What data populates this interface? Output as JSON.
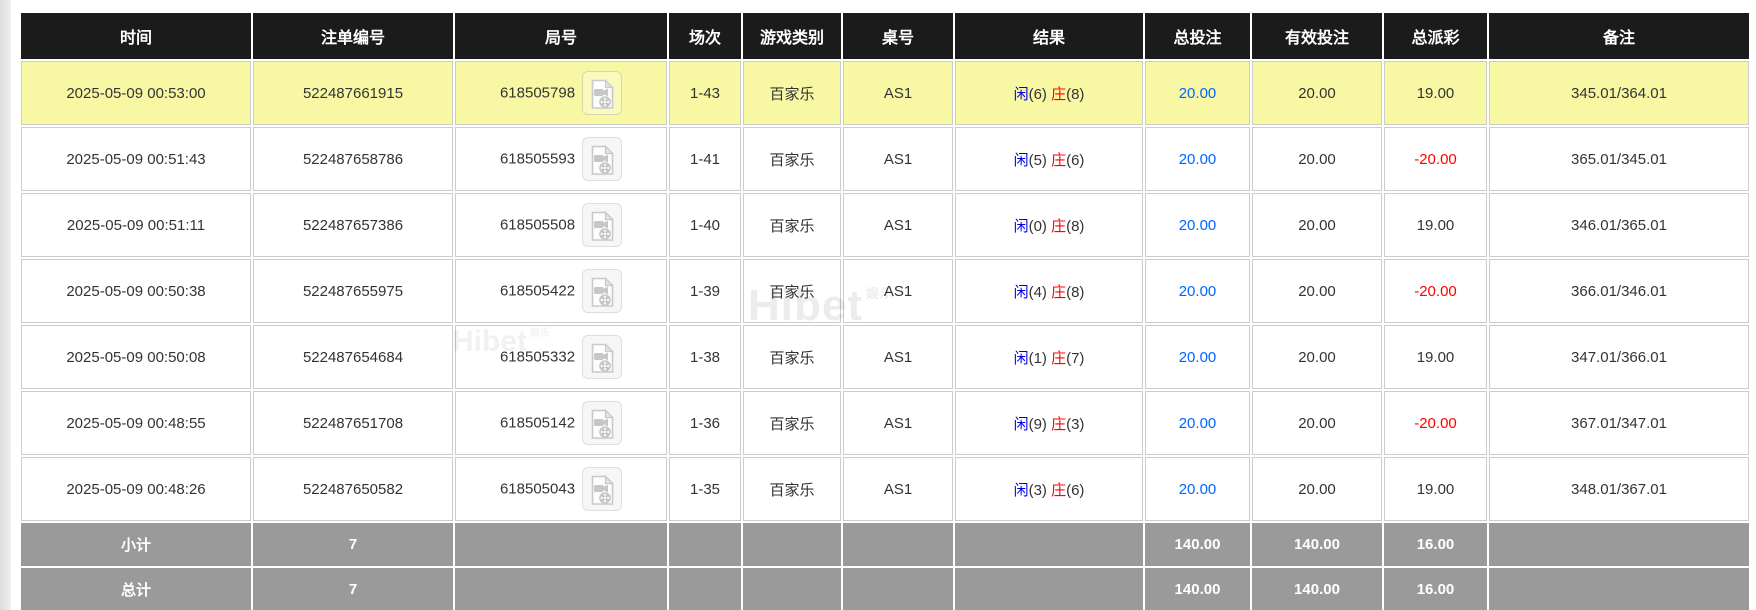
{
  "colors": {
    "header_bg": "#1b1b1b",
    "highlight_row": "#f8f8a4",
    "footer_bg": "#9a9a9a",
    "bet_amount_blue": "#0066ff",
    "player_blue": "#0000ee",
    "banker_red": "#ff0000",
    "negative_red": "#ff0000"
  },
  "watermark": {
    "text": "Hibet",
    "suffix": "娱乐"
  },
  "icons": {
    "replay": "video-file-icon"
  },
  "table": {
    "columns": [
      {
        "key": "time",
        "label": "时间"
      },
      {
        "key": "bet_id",
        "label": "注单编号"
      },
      {
        "key": "round",
        "label": "局号"
      },
      {
        "key": "session",
        "label": "场次"
      },
      {
        "key": "game",
        "label": "游戏类别"
      },
      {
        "key": "table_no",
        "label": "桌号"
      },
      {
        "key": "result",
        "label": "结果"
      },
      {
        "key": "total_bet",
        "label": "总投注"
      },
      {
        "key": "valid_bet",
        "label": "有效投注"
      },
      {
        "key": "payout",
        "label": "总派彩"
      },
      {
        "key": "remark",
        "label": "备注"
      }
    ],
    "result_labels": {
      "player": "闲",
      "banker": "庄"
    },
    "rows": [
      {
        "highlighted": true,
        "time": "2025-05-09 00:53:00",
        "bet_id": "522487661915",
        "round_id": "618505798",
        "session": "1-43",
        "game": "百家乐",
        "table_no": "AS1",
        "result": {
          "player": "(6)",
          "banker": "(8)"
        },
        "total_bet": "20.00",
        "valid_bet": "20.00",
        "payout": "19.00",
        "payout_negative": false,
        "remark": "345.01/364.01"
      },
      {
        "highlighted": false,
        "time": "2025-05-09 00:51:43",
        "bet_id": "522487658786",
        "round_id": "618505593",
        "session": "1-41",
        "game": "百家乐",
        "table_no": "AS1",
        "result": {
          "player": "(5)",
          "banker": "(6)"
        },
        "total_bet": "20.00",
        "valid_bet": "20.00",
        "payout": "-20.00",
        "payout_negative": true,
        "remark": "365.01/345.01"
      },
      {
        "highlighted": false,
        "time": "2025-05-09 00:51:11",
        "bet_id": "522487657386",
        "round_id": "618505508",
        "session": "1-40",
        "game": "百家乐",
        "table_no": "AS1",
        "result": {
          "player": "(0)",
          "banker": "(8)"
        },
        "total_bet": "20.00",
        "valid_bet": "20.00",
        "payout": "19.00",
        "payout_negative": false,
        "remark": "346.01/365.01"
      },
      {
        "highlighted": false,
        "time": "2025-05-09 00:50:38",
        "bet_id": "522487655975",
        "round_id": "618505422",
        "session": "1-39",
        "game": "百家乐",
        "table_no": "AS1",
        "result": {
          "player": "(4)",
          "banker": "(8)"
        },
        "total_bet": "20.00",
        "valid_bet": "20.00",
        "payout": "-20.00",
        "payout_negative": true,
        "remark": "366.01/346.01"
      },
      {
        "highlighted": false,
        "time": "2025-05-09 00:50:08",
        "bet_id": "522487654684",
        "round_id": "618505332",
        "session": "1-38",
        "game": "百家乐",
        "table_no": "AS1",
        "result": {
          "player": "(1)",
          "banker": "(7)"
        },
        "total_bet": "20.00",
        "valid_bet": "20.00",
        "payout": "19.00",
        "payout_negative": false,
        "remark": "347.01/366.01"
      },
      {
        "highlighted": false,
        "time": "2025-05-09 00:48:55",
        "bet_id": "522487651708",
        "round_id": "618505142",
        "session": "1-36",
        "game": "百家乐",
        "table_no": "AS1",
        "result": {
          "player": "(9)",
          "banker": "(3)"
        },
        "total_bet": "20.00",
        "valid_bet": "20.00",
        "payout": "-20.00",
        "payout_negative": true,
        "remark": "367.01/347.01"
      },
      {
        "highlighted": false,
        "time": "2025-05-09 00:48:26",
        "bet_id": "522487650582",
        "round_id": "618505043",
        "session": "1-35",
        "game": "百家乐",
        "table_no": "AS1",
        "result": {
          "player": "(3)",
          "banker": "(6)"
        },
        "total_bet": "20.00",
        "valid_bet": "20.00",
        "payout": "19.00",
        "payout_negative": false,
        "remark": "348.01/367.01"
      }
    ],
    "footer": [
      {
        "label": "小计",
        "count": "7",
        "total_bet": "140.00",
        "valid_bet": "140.00",
        "payout": "16.00"
      },
      {
        "label": "总计",
        "count": "7",
        "total_bet": "140.00",
        "valid_bet": "140.00",
        "payout": "16.00"
      }
    ]
  }
}
